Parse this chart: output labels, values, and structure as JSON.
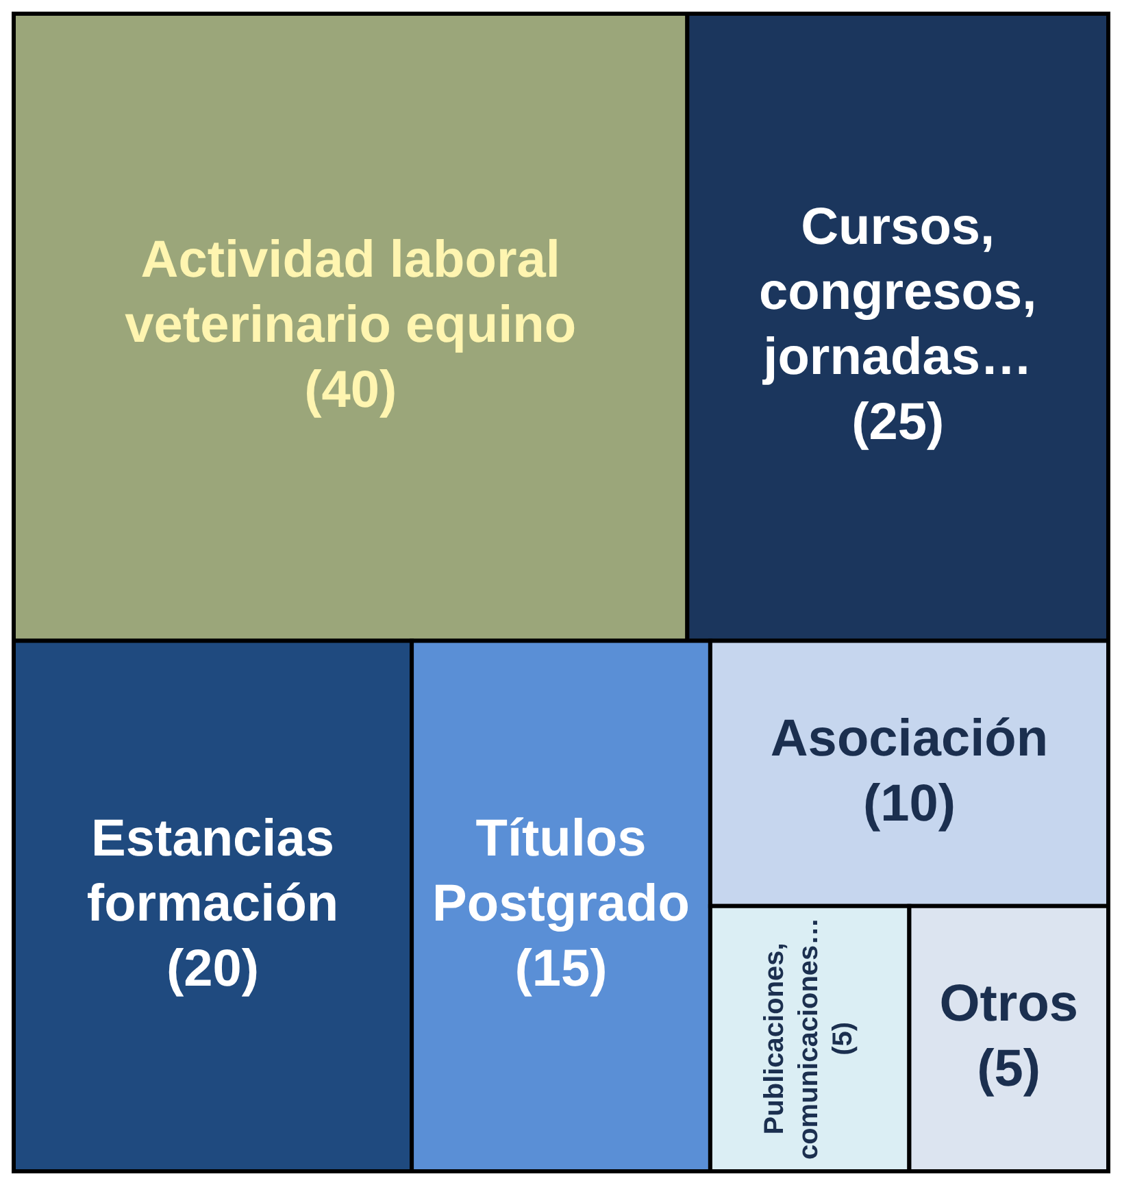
{
  "chart_data": {
    "type": "other",
    "categories": [
      "Actividad laboral veterinario equino",
      "Cursos, congresos, jornadas…",
      "Estancias formación",
      "Títulos Postgrado",
      "Asociación",
      "Publicaciones, comunicaciones…",
      "Otros"
    ],
    "values": [
      40,
      25,
      20,
      15,
      10,
      5,
      5
    ],
    "value_labels": [
      "(40)",
      "(25)",
      "(20)",
      "(15)",
      "(10)",
      "(5)",
      "(5)"
    ],
    "colors": [
      "#9ba67a",
      "#1b365d",
      "#1f4a7f",
      "#5a8fd6",
      "#c6d6ee",
      "#dbeef4",
      "#dce4f0"
    ]
  }
}
